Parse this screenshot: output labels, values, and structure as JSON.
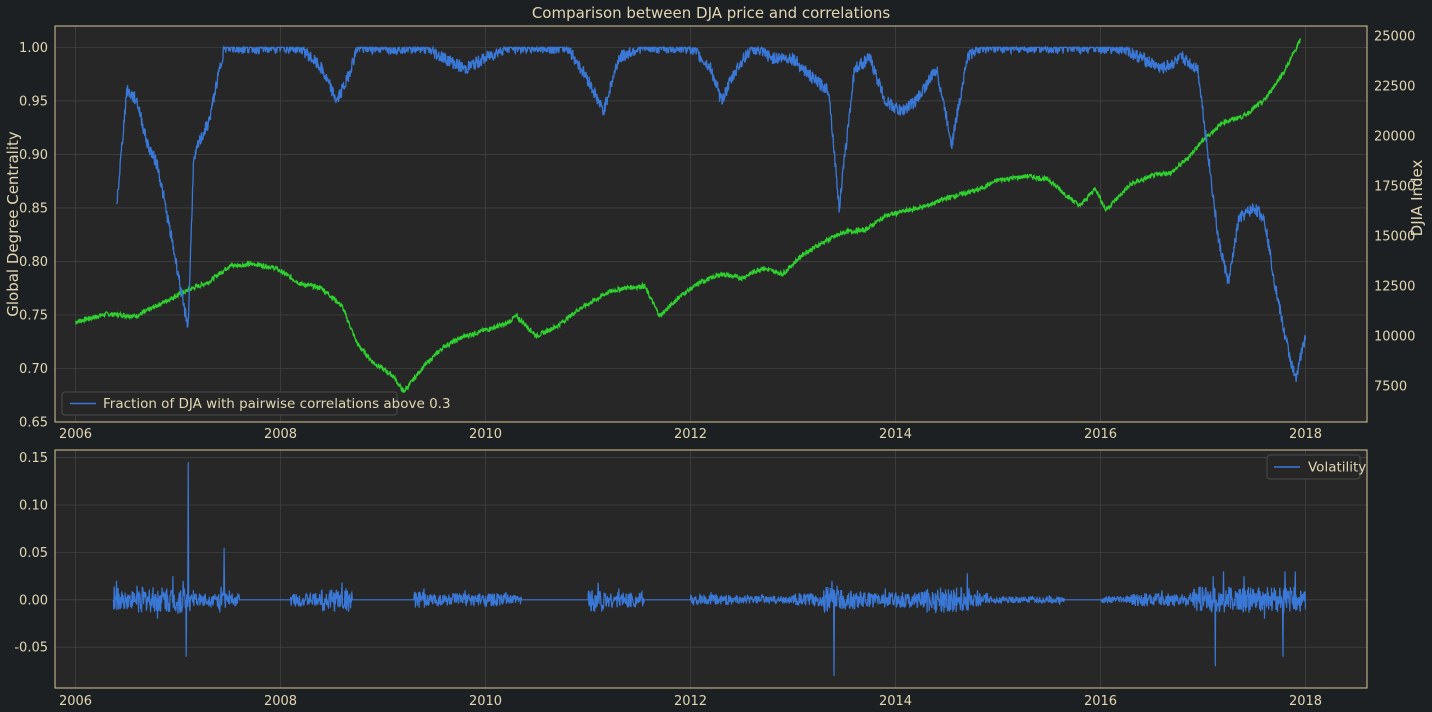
{
  "chart_data": [
    {
      "type": "line",
      "title": "Comparison between DJA price and correlations",
      "ylabel": "Global Degree Centrality",
      "y2label": "DJIA Index",
      "xlim": [
        2005.8,
        2018.6
      ],
      "ylim": [
        0.65,
        1.02
      ],
      "y2lim": [
        5700,
        25500
      ],
      "xticks": [
        "2006",
        "2008",
        "2010",
        "2012",
        "2014",
        "2016",
        "2018"
      ],
      "yticks": [
        "0.65",
        "0.70",
        "0.75",
        "0.80",
        "0.85",
        "0.90",
        "0.95",
        "1.00"
      ],
      "y2ticks": [
        "7500",
        "10000",
        "12500",
        "15000",
        "17500",
        "20000",
        "22500",
        "25000"
      ],
      "grid": true,
      "legend": {
        "placement": "lower-left",
        "entries": [
          "Fraction of DJA with pairwise correlations above 0.3"
        ]
      },
      "colors": {
        "centrality": "#3a78d8",
        "djia": "#2ed12e"
      },
      "series": [
        {
          "name": "Fraction of DJA with pairwise correlations above 0.3",
          "axis": "left",
          "x": [
            2006.4,
            2006.5,
            2006.6,
            2006.7,
            2006.8,
            2006.9,
            2007.0,
            2007.05,
            2007.1,
            2007.15,
            2007.2,
            2007.3,
            2007.45,
            2007.55,
            2007.8,
            2008.0,
            2008.2,
            2008.4,
            2008.55,
            2008.65,
            2008.75,
            2008.9,
            2009.2,
            2009.4,
            2009.6,
            2009.8,
            2010.0,
            2010.2,
            2010.4,
            2010.6,
            2010.8,
            2011.0,
            2011.15,
            2011.3,
            2011.5,
            2011.8,
            2012.0,
            2012.2,
            2012.3,
            2012.45,
            2012.6,
            2012.8,
            2013.0,
            2013.2,
            2013.35,
            2013.45,
            2013.6,
            2013.75,
            2013.9,
            2014.05,
            2014.2,
            2014.4,
            2014.55,
            2014.7,
            2014.8,
            2015.0,
            2015.2,
            2015.4,
            2015.6,
            2015.8,
            2016.0,
            2016.2,
            2016.4,
            2016.6,
            2016.8,
            2016.95,
            2017.05,
            2017.15,
            2017.25,
            2017.35,
            2017.5,
            2017.6,
            2017.7,
            2017.8,
            2017.9,
            2018.0
          ],
          "values": [
            0.85,
            0.96,
            0.95,
            0.91,
            0.89,
            0.84,
            0.79,
            0.76,
            0.74,
            0.89,
            0.91,
            0.93,
            1.0,
            1.0,
            1.0,
            1.0,
            1.0,
            0.98,
            0.95,
            0.97,
            1.0,
            1.0,
            1.0,
            1.0,
            0.99,
            0.98,
            0.99,
            1.0,
            1.0,
            1.0,
            1.0,
            0.97,
            0.94,
            0.99,
            1.0,
            1.0,
            1.0,
            0.98,
            0.95,
            0.98,
            1.0,
            0.99,
            0.99,
            0.97,
            0.96,
            0.85,
            0.98,
            0.99,
            0.95,
            0.94,
            0.95,
            0.98,
            0.91,
            0.99,
            1.0,
            1.0,
            1.0,
            1.0,
            1.0,
            1.0,
            1.0,
            1.0,
            0.99,
            0.98,
            0.99,
            0.98,
            0.9,
            0.82,
            0.78,
            0.84,
            0.85,
            0.84,
            0.78,
            0.73,
            0.69,
            0.73
          ]
        },
        {
          "name": "DJIA Index",
          "axis": "right",
          "x": [
            2006.0,
            2006.3,
            2006.6,
            2006.9,
            2007.1,
            2007.3,
            2007.5,
            2007.75,
            2007.95,
            2008.2,
            2008.4,
            2008.6,
            2008.75,
            2008.9,
            2009.1,
            2009.2,
            2009.4,
            2009.6,
            2009.8,
            2010.0,
            2010.2,
            2010.3,
            2010.5,
            2010.7,
            2010.9,
            2011.2,
            2011.35,
            2011.55,
            2011.7,
            2011.9,
            2012.1,
            2012.3,
            2012.5,
            2012.7,
            2012.9,
            2013.1,
            2013.3,
            2013.5,
            2013.7,
            2013.9,
            2014.05,
            2014.3,
            2014.5,
            2014.8,
            2015.0,
            2015.3,
            2015.5,
            2015.65,
            2015.8,
            2015.95,
            2016.05,
            2016.3,
            2016.5,
            2016.7,
            2016.85,
            2017.0,
            2017.2,
            2017.4,
            2017.6,
            2017.8,
            2017.95
          ],
          "values": [
            10700,
            11100,
            11000,
            11800,
            12300,
            12700,
            13500,
            13600,
            13400,
            12600,
            12400,
            11500,
            9600,
            8700,
            8000,
            7200,
            8500,
            9500,
            10000,
            10300,
            10600,
            11000,
            10000,
            10500,
            11300,
            12200,
            12400,
            12500,
            11000,
            12000,
            12700,
            13100,
            12900,
            13400,
            13100,
            14100,
            14700,
            15200,
            15300,
            16000,
            16200,
            16500,
            16900,
            17300,
            17800,
            18000,
            17800,
            17100,
            16500,
            17400,
            16300,
            17600,
            18000,
            18200,
            18900,
            19800,
            20700,
            21000,
            21800,
            23300,
            24800
          ]
        }
      ]
    },
    {
      "type": "line",
      "xlim": [
        2005.8,
        2018.6
      ],
      "ylim": [
        -0.093,
        0.158
      ],
      "xticks": [
        "2006",
        "2008",
        "2010",
        "2012",
        "2014",
        "2016",
        "2018"
      ],
      "yticks": [
        "-0.05",
        "0.00",
        "0.05",
        "0.10",
        "0.15"
      ],
      "grid": true,
      "legend": {
        "placement": "upper-right",
        "entries": [
          "Volatility"
        ]
      },
      "colors": {
        "volatility": "#3a78d8"
      },
      "series": [
        {
          "name": "Volatility",
          "x": [
            2006.37,
            2006.4,
            2006.42,
            2006.6,
            2006.8,
            2006.95,
            2007.0,
            2007.05,
            2007.08,
            2007.09,
            2007.1,
            2007.12,
            2007.15,
            2007.4,
            2007.45,
            2007.47,
            2007.5,
            2007.6,
            2008.0,
            2008.1,
            2008.4,
            2008.6,
            2008.7,
            2009.3,
            2009.4,
            2009.45,
            2009.8,
            2010.2,
            2010.35,
            2011.0,
            2011.1,
            2011.15,
            2011.3,
            2011.55,
            2012.0,
            2012.2,
            2012.4,
            2012.7,
            2013.0,
            2013.3,
            2013.38,
            2013.4,
            2013.41,
            2013.43,
            2013.6,
            2013.9,
            2014.3,
            2014.7,
            2014.75,
            2014.8,
            2014.9,
            2015.5,
            2015.6,
            2015.65,
            2016.0,
            2016.3,
            2016.6,
            2016.9,
            2017.1,
            2017.12,
            2017.13,
            2017.2,
            2017.4,
            2017.6,
            2017.78,
            2017.8,
            2017.9,
            2018.0
          ],
          "values": [
            0.0,
            0.02,
            -0.01,
            0.015,
            -0.02,
            0.025,
            -0.015,
            0.02,
            -0.06,
            0.0,
            0.145,
            0.0,
            0.01,
            -0.01,
            0.055,
            0.0,
            0.01,
            0.0,
            0.0,
            0.003,
            0.01,
            0.018,
            0.0,
            0.0,
            0.012,
            -0.005,
            0.01,
            0.008,
            0.0,
            0.0,
            0.018,
            -0.01,
            0.012,
            0.0,
            0.0,
            0.008,
            -0.005,
            0.006,
            0.004,
            0.01,
            0.02,
            -0.08,
            0.0,
            0.015,
            -0.01,
            0.012,
            0.01,
            0.028,
            -0.005,
            0.01,
            0.0,
            0.005,
            -0.005,
            0.0,
            0.0,
            0.005,
            0.01,
            0.008,
            0.025,
            -0.07,
            0.0,
            0.03,
            0.025,
            -0.02,
            -0.06,
            0.03,
            0.03,
            -0.01
          ]
        }
      ]
    }
  ]
}
